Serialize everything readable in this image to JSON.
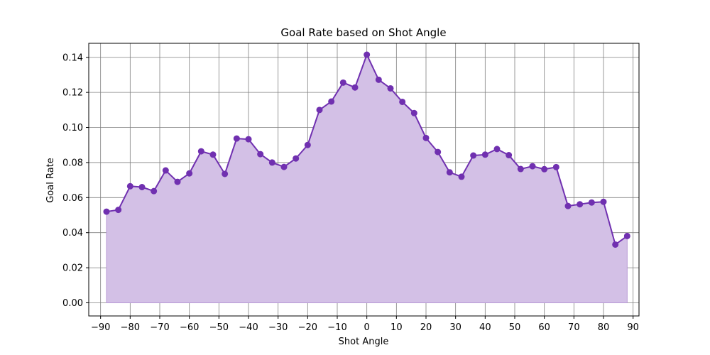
{
  "chart_data": {
    "type": "area",
    "title": "Goal Rate based on Shot Angle",
    "xlabel": "Shot Angle",
    "ylabel": "Goal Rate",
    "xlim": [
      -94,
      92
    ],
    "ylim": [
      -0.0075,
      0.148
    ],
    "xticks": [
      -90,
      -80,
      -70,
      -60,
      -50,
      -40,
      -30,
      -20,
      -10,
      0,
      10,
      20,
      30,
      40,
      50,
      60,
      70,
      80,
      90
    ],
    "xtick_labels": [
      "−90",
      "−80",
      "−70",
      "−60",
      "−50",
      "−40",
      "−30",
      "−20",
      "−10",
      "0",
      "10",
      "20",
      "30",
      "40",
      "50",
      "60",
      "70",
      "80",
      "90"
    ],
    "yticks": [
      0.0,
      0.02,
      0.04,
      0.06,
      0.08,
      0.1,
      0.12,
      0.14
    ],
    "ytick_labels": [
      "0.00",
      "0.02",
      "0.04",
      "0.06",
      "0.08",
      "0.10",
      "0.12",
      "0.14"
    ],
    "grid": true,
    "colors": {
      "line": "#7030B0",
      "fill": "#D3C0E6",
      "grid": "#808080",
      "axes": "#000000"
    },
    "series": [
      {
        "x": [
          -88,
          -84,
          -80,
          -76,
          -72,
          -68,
          -64,
          -60,
          -56,
          -52,
          -48,
          -44,
          -40,
          -36,
          -32,
          -28,
          -24,
          -20,
          -16,
          -12,
          -8,
          -4,
          0,
          4,
          8,
          12,
          16,
          20,
          24,
          28,
          32,
          36,
          40,
          44,
          48,
          52,
          56,
          60,
          64,
          68,
          72,
          76,
          80,
          84,
          88
        ],
        "y": [
          0.052,
          0.053,
          0.0665,
          0.066,
          0.0637,
          0.0755,
          0.069,
          0.0738,
          0.0864,
          0.0845,
          0.0735,
          0.0937,
          0.0933,
          0.0848,
          0.08,
          0.0775,
          0.0823,
          0.09,
          0.11,
          0.1148,
          0.1256,
          0.1228,
          0.1415,
          0.1272,
          0.1223,
          0.1146,
          0.1082,
          0.094,
          0.086,
          0.0744,
          0.0719,
          0.084,
          0.0845,
          0.0877,
          0.0842,
          0.0763,
          0.0779,
          0.0762,
          0.0774,
          0.0552,
          0.0562,
          0.0572,
          0.0576,
          0.0332,
          0.0381
        ]
      }
    ]
  }
}
